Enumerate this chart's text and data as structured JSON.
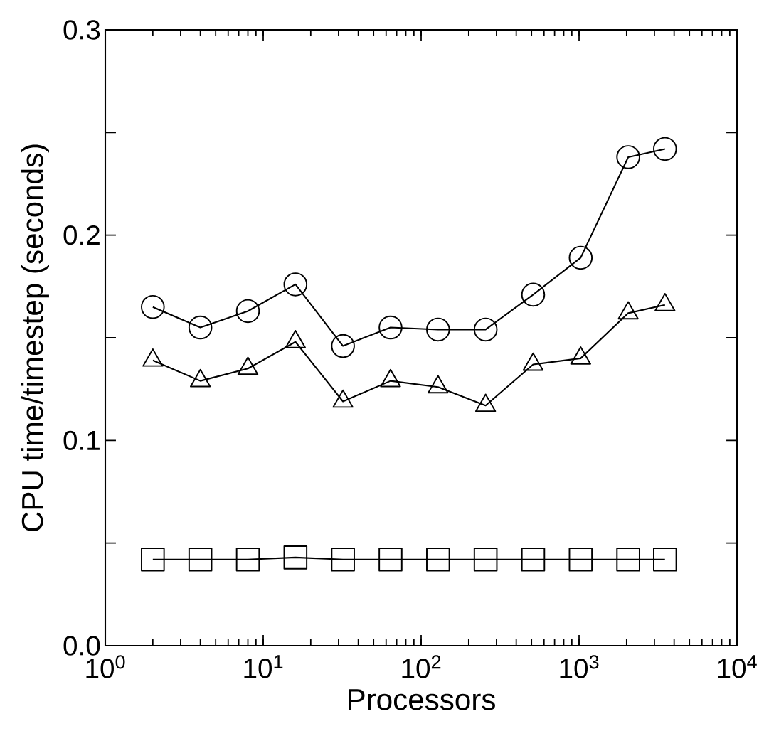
{
  "chart_data": {
    "type": "line",
    "xlabel": "Processors",
    "ylabel": "CPU time/timestep (seconds)",
    "x": [
      2,
      4,
      8,
      16,
      32,
      64,
      128,
      256,
      512,
      1024,
      2048,
      3500
    ],
    "series": [
      {
        "color": "#000000",
        "marker": "circle",
        "values": [
          0.165,
          0.155,
          0.163,
          0.176,
          0.146,
          0.155,
          0.154,
          0.154,
          0.171,
          0.189,
          0.238,
          0.242
        ]
      },
      {
        "color": "#000000",
        "marker": "triangle",
        "values": [
          0.139,
          0.129,
          0.135,
          0.148,
          0.119,
          0.129,
          0.126,
          0.117,
          0.137,
          0.14,
          0.162,
          0.166
        ]
      },
      {
        "color": "#000000",
        "marker": "square",
        "values": [
          0.042,
          0.042,
          0.042,
          0.043,
          0.042,
          0.042,
          0.042,
          0.042,
          0.042,
          0.042,
          0.042,
          0.042
        ]
      }
    ],
    "log": "x",
    "xlim": [
      1,
      10000
    ],
    "ylim": [
      0,
      0.3
    ],
    "xticks": [
      {
        "value": 1,
        "label": "10$^{0}$"
      },
      {
        "value": 10,
        "label": "10$^{1}$"
      },
      {
        "value": 100,
        "label": "10$^{2}$"
      },
      {
        "value": 1000,
        "label": "10$^{3}$"
      },
      {
        "value": 10000,
        "label": "10$^{4}$"
      }
    ],
    "yticks": [
      {
        "value": 0,
        "label": "0.0"
      },
      {
        "value": 0.05,
        "label": null
      },
      0.1,
      {
        "value": 0.15,
        "label": null
      },
      0.2,
      {
        "value": 0.25,
        "label": null
      },
      0.3
    ],
    "grid": false,
    "line_style": "solid"
  }
}
